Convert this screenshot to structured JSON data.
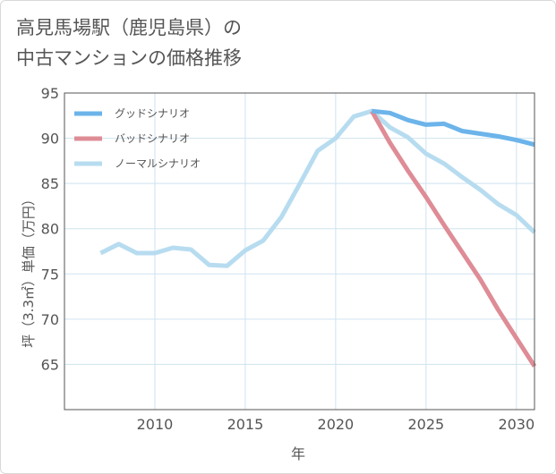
{
  "title_lines": [
    "高見馬場駅（鹿児島県）の",
    "中古マンションの価格推移"
  ],
  "chart_data": {
    "type": "line",
    "xlabel": "年",
    "ylabel": "坪（3.3㎡）単価（万円）",
    "xlim": [
      2005,
      2031
    ],
    "ylim": [
      60,
      95
    ],
    "x_ticks": [
      2010,
      2015,
      2020,
      2025,
      2030
    ],
    "y_ticks": [
      65,
      70,
      75,
      80,
      85,
      90,
      95
    ],
    "grid": true,
    "legend_position": "top-left",
    "series": [
      {
        "name": "グッドシナリオ",
        "color": "#6cb4ea",
        "x": [
          2022,
          2023,
          2024,
          2025,
          2026,
          2027,
          2028,
          2029,
          2030,
          2031
        ],
        "y": [
          93.0,
          92.8,
          92.0,
          91.5,
          91.6,
          90.8,
          90.5,
          90.2,
          89.8,
          89.3
        ]
      },
      {
        "name": "バッドシナリオ",
        "color": "#de8c96",
        "x": [
          2022,
          2023,
          2024,
          2025,
          2026,
          2027,
          2028,
          2029,
          2030,
          2031
        ],
        "y": [
          93.0,
          89.5,
          86.4,
          83.5,
          80.4,
          77.4,
          74.4,
          71.0,
          67.9,
          64.8
        ]
      },
      {
        "name": "ノーマルシナリオ",
        "color": "#b7dcf0",
        "x": [
          2007,
          2008,
          2009,
          2010,
          2011,
          2012,
          2013,
          2014,
          2015,
          2016,
          2017,
          2018,
          2019,
          2020,
          2021,
          2022,
          2023,
          2024,
          2025,
          2026,
          2027,
          2028,
          2029,
          2030,
          2031
        ],
        "y": [
          77.3,
          78.3,
          77.3,
          77.3,
          77.9,
          77.7,
          76.0,
          75.9,
          77.6,
          78.7,
          81.3,
          84.9,
          88.6,
          90.0,
          92.4,
          93.0,
          91.2,
          90.1,
          88.3,
          87.2,
          85.7,
          84.3,
          82.7,
          81.5,
          79.6
        ]
      }
    ]
  }
}
